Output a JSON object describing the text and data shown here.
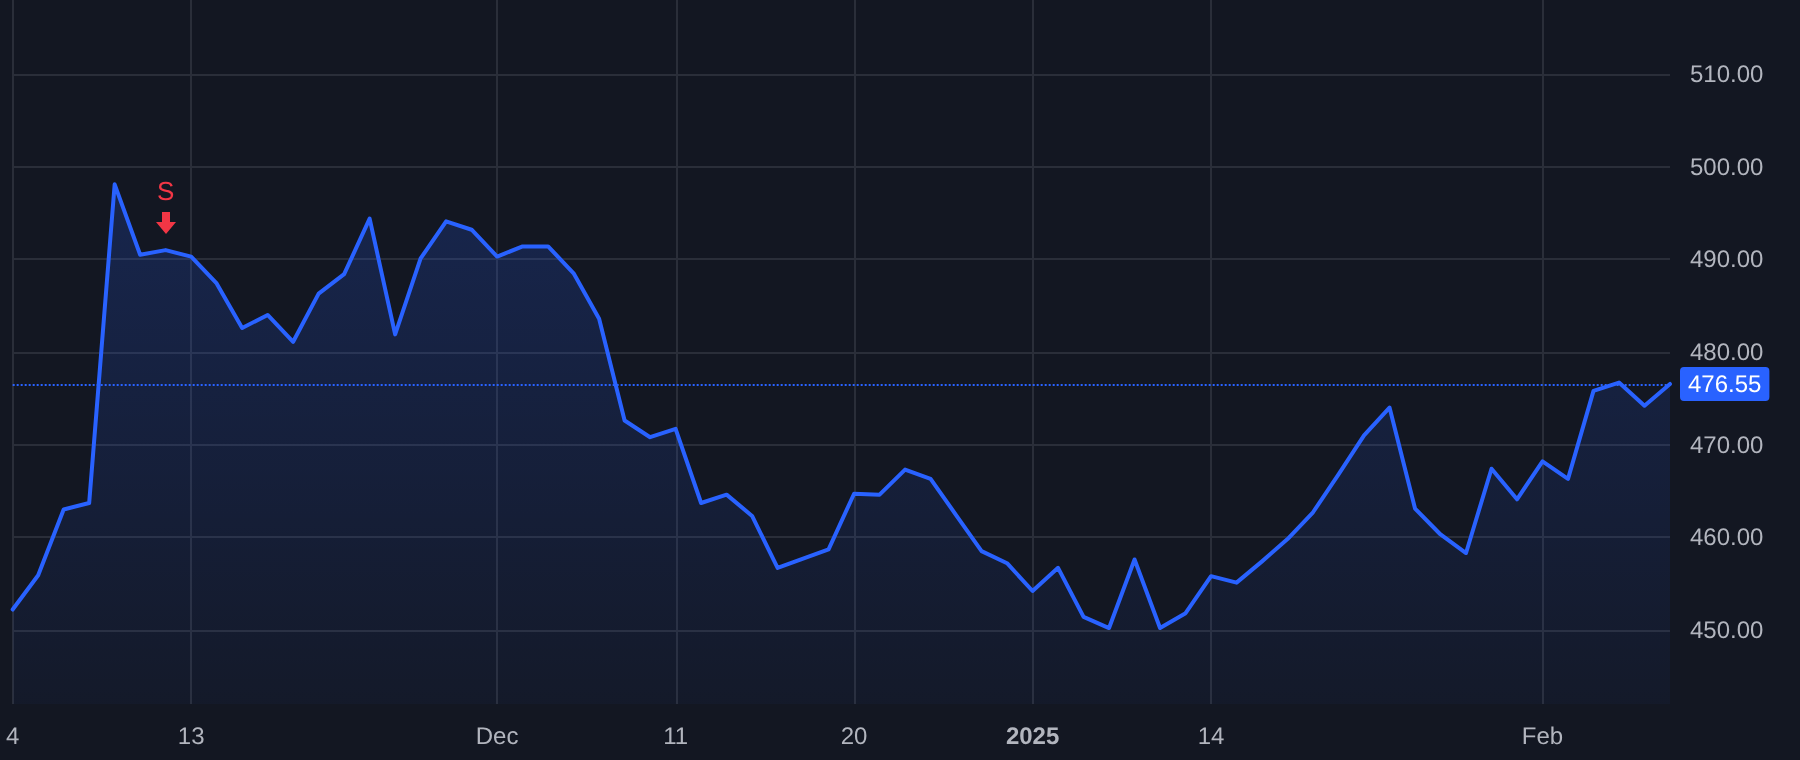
{
  "chart_data": {
    "type": "area",
    "categories": [
      "4",
      null,
      null,
      null,
      null,
      null,
      null,
      "13",
      null,
      null,
      null,
      null,
      null,
      null,
      null,
      null,
      null,
      null,
      null,
      "Dec",
      null,
      null,
      null,
      null,
      null,
      null,
      "11",
      null,
      null,
      null,
      null,
      null,
      null,
      "20",
      null,
      null,
      null,
      null,
      null,
      null,
      "2025",
      null,
      null,
      null,
      null,
      null,
      null,
      "14",
      null,
      null,
      null,
      null,
      null,
      null,
      null,
      null,
      null,
      null,
      null,
      null,
      "Feb",
      null,
      null,
      null,
      null,
      null
    ],
    "series": [
      {
        "color": "#2962ff",
        "values": [
          452.2,
          455.9,
          463.0,
          463.7,
          498.1,
          490.5,
          491.0,
          490.3,
          487.4,
          482.6,
          484.0,
          481.1,
          486.3,
          488.4,
          494.4,
          481.9,
          490.1,
          494.1,
          493.2,
          490.3,
          491.4,
          491.4,
          488.5,
          483.6,
          472.6,
          470.8,
          471.7,
          463.7,
          464.6,
          462.3,
          456.7,
          457.7,
          458.7,
          464.7,
          464.6,
          467.3,
          466.3,
          462.4,
          458.5,
          457.2,
          454.2,
          456.7,
          451.4,
          450.2,
          457.6,
          450.2,
          451.8,
          455.8,
          455.1,
          457.4,
          459.8,
          462.7,
          466.8,
          471.0,
          474.0,
          463.1,
          460.3,
          458.3,
          467.4,
          464.1,
          468.2,
          466.3,
          475.8,
          476.7,
          474.2,
          476.55
        ]
      }
    ],
    "ylim": [
      442,
      518
    ],
    "yticks": [
      {
        "value": 450,
        "label": "450.00"
      },
      {
        "value": 460,
        "label": "460.00"
      },
      {
        "value": 470,
        "label": "470.00"
      },
      {
        "value": 480,
        "label": "480.00"
      },
      {
        "value": 490,
        "label": "490.00"
      },
      {
        "value": 500,
        "label": "500.00"
      },
      {
        "value": 510,
        "label": "510.00"
      }
    ],
    "ref_lines": [
      {
        "axis": "y",
        "value": 476.55,
        "label": "476.55",
        "color": "#2962ff",
        "line_style": "dotted"
      }
    ],
    "annotations": [
      {
        "text": "S",
        "y": 491.0
      }
    ],
    "grid": true,
    "marker": "none",
    "line_style": "solid"
  }
}
